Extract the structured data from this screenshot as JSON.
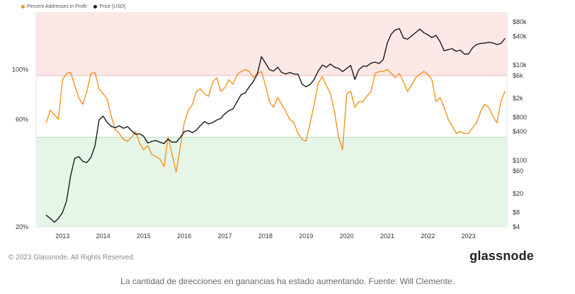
{
  "legend": [
    {
      "label": "Percent Addresses in Profit",
      "color": "#f7931a"
    },
    {
      "label": "Price [USD]",
      "color": "#1a1a1a"
    }
  ],
  "footer": {
    "copyright": "© 2023 Glassnode. All Rights Reserved.",
    "brand": "glassnode",
    "caption": "La cantidad de direcciones en ganancias ha estado aumentando. Fuente: Will Clemente."
  },
  "colors": {
    "profit": "#f7931a",
    "price": "#1a1a1a",
    "band_high": "#fde8e8",
    "band_high_line": "#f3b4b4",
    "band_low": "#e5f5e8",
    "band_low_line": "#b6dfbf"
  },
  "chart_data": {
    "type": "line",
    "title": "",
    "left_axis": {
      "scale": "log",
      "ticks": [
        {
          "value": 20,
          "label": "20%"
        },
        {
          "value": 60,
          "label": "60%"
        },
        {
          "value": 100,
          "label": "100%"
        }
      ]
    },
    "right_axis": {
      "scale": "log",
      "ticks": [
        {
          "value": 4,
          "label": "$4"
        },
        {
          "value": 8,
          "label": "$8"
        },
        {
          "value": 20,
          "label": "$20"
        },
        {
          "value": 60,
          "label": "$60"
        },
        {
          "value": 100,
          "label": "$100"
        },
        {
          "value": 400,
          "label": "$400"
        },
        {
          "value": 800,
          "label": "$800"
        },
        {
          "value": 2000,
          "label": "$2k"
        },
        {
          "value": 6000,
          "label": "$6k"
        },
        {
          "value": 10000,
          "label": "$10k"
        },
        {
          "value": 40000,
          "label": "$40k"
        },
        {
          "value": 80000,
          "label": "$80k"
        }
      ]
    },
    "x_ticks": [
      "2013",
      "2014",
      "2015",
      "2016",
      "2017",
      "2018",
      "2019",
      "2020",
      "2021",
      "2022",
      "2023"
    ],
    "bands": [
      {
        "name": "high",
        "from_percent": 94,
        "to_percent": 180
      },
      {
        "name": "low",
        "from_percent": 20,
        "to_percent": 50
      }
    ],
    "series": [
      {
        "name": "Percent Addresses in Profit",
        "x": [
          2012.6,
          2012.7,
          2012.8,
          2012.9,
          2013.0,
          2013.1,
          2013.2,
          2013.3,
          2013.4,
          2013.5,
          2013.6,
          2013.7,
          2013.8,
          2013.9,
          2014.0,
          2014.1,
          2014.2,
          2014.3,
          2014.4,
          2014.5,
          2014.6,
          2014.7,
          2014.8,
          2014.9,
          2015.0,
          2015.1,
          2015.2,
          2015.3,
          2015.4,
          2015.5,
          2015.6,
          2015.7,
          2015.8,
          2015.9,
          2016.0,
          2016.1,
          2016.2,
          2016.3,
          2016.4,
          2016.5,
          2016.6,
          2016.7,
          2016.8,
          2016.9,
          2017.0,
          2017.1,
          2017.2,
          2017.3,
          2017.4,
          2017.5,
          2017.6,
          2017.7,
          2017.8,
          2017.9,
          2018.0,
          2018.1,
          2018.2,
          2018.3,
          2018.4,
          2018.5,
          2018.6,
          2018.7,
          2018.8,
          2018.9,
          2019.0,
          2019.1,
          2019.2,
          2019.3,
          2019.4,
          2019.5,
          2019.6,
          2019.7,
          2019.8,
          2019.9,
          2020.0,
          2020.1,
          2020.2,
          2020.3,
          2020.4,
          2020.5,
          2020.6,
          2020.7,
          2020.8,
          2020.9,
          2021.0,
          2021.1,
          2021.2,
          2021.3,
          2021.4,
          2021.5,
          2021.6,
          2021.7,
          2021.8,
          2021.9,
          2022.0,
          2022.1,
          2022.2,
          2022.3,
          2022.4,
          2022.5,
          2022.6,
          2022.7,
          2022.8,
          2022.9,
          2023.0,
          2023.1,
          2023.2,
          2023.3,
          2023.4,
          2023.5,
          2023.6,
          2023.7,
          2023.8,
          2023.9
        ],
        "values": [
          58,
          66,
          63,
          60,
          90,
          96,
          97,
          85,
          75,
          70,
          80,
          96,
          97,
          82,
          78,
          74,
          62,
          54,
          52,
          49,
          48,
          50,
          53,
          47,
          44,
          46,
          42,
          41,
          40,
          37,
          50,
          42,
          35,
          45,
          58,
          66,
          70,
          80,
          82,
          78,
          76,
          88,
          92,
          80,
          83,
          90,
          86,
          95,
          98,
          100,
          98,
          92,
          96,
          98,
          85,
          72,
          68,
          75,
          70,
          65,
          60,
          58,
          52,
          49,
          48,
          58,
          70,
          87,
          93,
          85,
          78,
          65,
          50,
          44,
          78,
          80,
          68,
          72,
          72,
          76,
          80,
          96,
          98,
          98,
          100,
          96,
          92,
          96,
          88,
          80,
          85,
          92,
          95,
          98,
          95,
          90,
          72,
          75,
          68,
          60,
          56,
          52,
          53,
          52,
          52,
          55,
          58,
          65,
          70,
          68,
          62,
          58,
          72,
          80
        ]
      },
      {
        "name": "Price [USD]",
        "x": [
          2012.6,
          2012.7,
          2012.8,
          2012.9,
          2013.0,
          2013.1,
          2013.2,
          2013.3,
          2013.4,
          2013.5,
          2013.6,
          2013.7,
          2013.8,
          2013.9,
          2014.0,
          2014.1,
          2014.2,
          2014.3,
          2014.4,
          2014.5,
          2014.6,
          2014.7,
          2014.8,
          2014.9,
          2015.0,
          2015.1,
          2015.2,
          2015.3,
          2015.4,
          2015.5,
          2015.6,
          2015.7,
          2015.8,
          2015.9,
          2016.0,
          2016.1,
          2016.2,
          2016.3,
          2016.4,
          2016.5,
          2016.6,
          2016.7,
          2016.8,
          2016.9,
          2017.0,
          2017.1,
          2017.2,
          2017.3,
          2017.4,
          2017.5,
          2017.6,
          2017.7,
          2017.8,
          2017.9,
          2018.0,
          2018.1,
          2018.2,
          2018.3,
          2018.4,
          2018.5,
          2018.6,
          2018.7,
          2018.8,
          2018.9,
          2019.0,
          2019.1,
          2019.2,
          2019.3,
          2019.4,
          2019.5,
          2019.6,
          2019.7,
          2019.8,
          2019.9,
          2020.0,
          2020.1,
          2020.2,
          2020.3,
          2020.4,
          2020.5,
          2020.6,
          2020.7,
          2020.8,
          2020.9,
          2021.0,
          2021.1,
          2021.2,
          2021.3,
          2021.4,
          2021.5,
          2021.6,
          2021.7,
          2021.8,
          2021.9,
          2022.0,
          2022.1,
          2022.2,
          2022.3,
          2022.4,
          2022.5,
          2022.6,
          2022.7,
          2022.8,
          2022.9,
          2023.0,
          2023.1,
          2023.2,
          2023.3,
          2023.4,
          2023.5,
          2023.6,
          2023.7,
          2023.8,
          2023.9
        ],
        "values": [
          7,
          6,
          5,
          6,
          8,
          14,
          47,
          110,
          120,
          95,
          90,
          115,
          200,
          700,
          850,
          620,
          520,
          480,
          530,
          470,
          510,
          420,
          350,
          360,
          320,
          230,
          250,
          260,
          240,
          225,
          280,
          240,
          240,
          300,
          400,
          420,
          380,
          430,
          540,
          650,
          580,
          620,
          700,
          760,
          950,
          1100,
          1200,
          1700,
          2400,
          2600,
          3500,
          4500,
          6500,
          15000,
          11000,
          8000,
          7500,
          9000,
          7000,
          6500,
          7000,
          6500,
          6400,
          4000,
          3500,
          3900,
          5000,
          7500,
          10000,
          9000,
          10500,
          9000,
          8500,
          7300,
          8500,
          9800,
          5000,
          8000,
          9500,
          9500,
          11000,
          11500,
          10800,
          13000,
          29000,
          45000,
          55000,
          58000,
          37000,
          35000,
          41000,
          48000,
          57000,
          48000,
          43000,
          38000,
          42000,
          31000,
          20000,
          21000,
          22000,
          19500,
          20500,
          17000,
          17000,
          23000,
          27000,
          28500,
          29000,
          30000,
          29200,
          27000,
          28500,
          36000
        ]
      }
    ]
  }
}
